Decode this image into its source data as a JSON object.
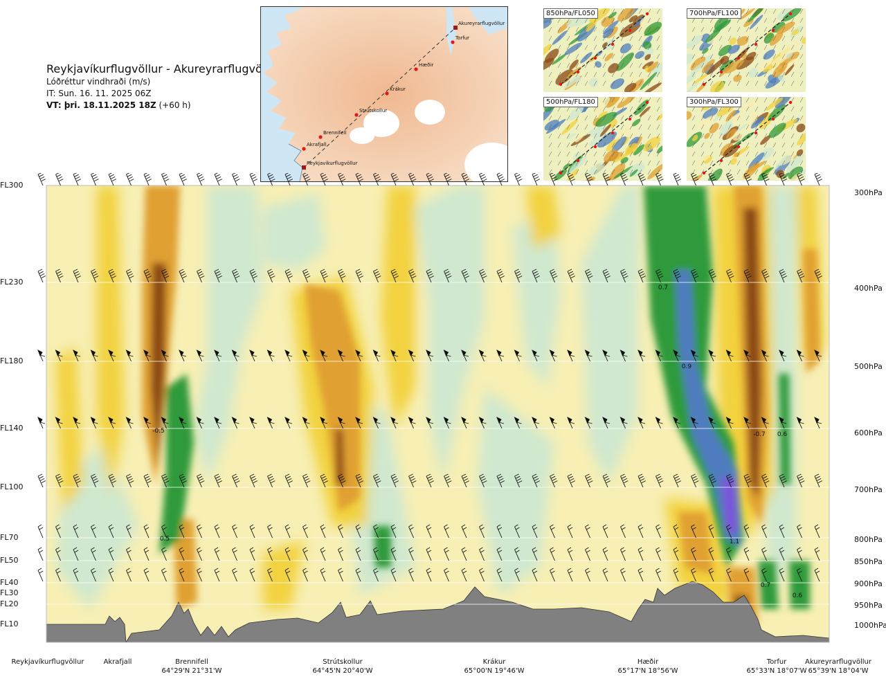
{
  "header": {
    "route": "Reykjavíkurflugvöllur - Akureyrarflugvöllur",
    "parameter": "Lóðréttur vindhraði (m/s)",
    "issue_time": "IT: Sun. 16. 11. 2025 06Z",
    "valid_time_bold": "VT: þri. 18.11.2025 18Z",
    "valid_time_offset": " (+60 h)"
  },
  "colors": {
    "strong_down": "#8b4a12",
    "down": "#e0a030",
    "weak_down": "#f2d23c",
    "neutral": "#f7efb4",
    "weak_up": "#cfe8cf",
    "up": "#2f9a3a",
    "strong_up": "#4f7dbf",
    "very_strong_up": "#7a57d8",
    "terrain": "#808080"
  },
  "minimap": {
    "points": [
      "Akureyrarflugvöllur",
      "Torfur",
      "Hæðir",
      "Krákur",
      "Strútskollur",
      "Brennifell",
      "Akrafjall",
      "Reykjavíkurflugvöllur"
    ]
  },
  "panels": [
    {
      "label": "850hPa/FL050"
    },
    {
      "label": "700hPa/FL100"
    },
    {
      "label": "500hPa/FL180"
    },
    {
      "label": "300hPa/FL300"
    }
  ],
  "levels": [
    {
      "fl": "FL300",
      "hpa": "300hPa"
    },
    {
      "fl": "FL230",
      "hpa": "400hPa"
    },
    {
      "fl": "FL180",
      "hpa": "500hPa"
    },
    {
      "fl": "FL140",
      "hpa": "600hPa"
    },
    {
      "fl": "FL100",
      "hpa": "700hPa"
    },
    {
      "fl": "FL70",
      "hpa": "800hPa"
    },
    {
      "fl": "FL50",
      "hpa": "850hPa"
    },
    {
      "fl": "FL40",
      "hpa": "900hPa"
    },
    {
      "fl": "FL30",
      "hpa": ""
    },
    {
      "fl": "FL20",
      "hpa": "950hPa"
    },
    {
      "fl": "FL10",
      "hpa": "1000hPa"
    }
  ],
  "contour_labels": [
    "-0.5",
    "0.5",
    "0.7",
    "0.9",
    "-0.7",
    "0.6",
    "1.1",
    "0.7",
    "0.6"
  ],
  "stations": [
    {
      "name": "Reykjavíkurflugvöllur",
      "coord": ""
    },
    {
      "name": "Akrafjall",
      "coord": ""
    },
    {
      "name": "Brennifell",
      "coord": "64°29'N 21°31'W"
    },
    {
      "name": "Strútskollur",
      "coord": "64°45'N 20°40'W"
    },
    {
      "name": "Krákur",
      "coord": "65°00'N 19°46'W"
    },
    {
      "name": "Hæðir",
      "coord": "65°17'N 18°56'W"
    },
    {
      "name": "Torfur",
      "coord": "65°33'N 18°07'W"
    },
    {
      "name": "Akureyrarflugvöllur",
      "coord": "65°39'N 18°04'W"
    }
  ]
}
